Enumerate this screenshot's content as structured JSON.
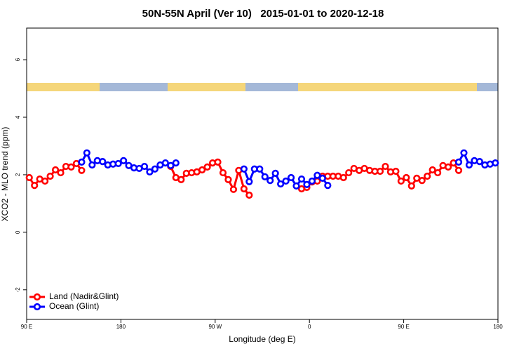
{
  "chart_data": {
    "type": "line",
    "title": "50N-55N April (Ver 10)   2015-01-01 to 2020-12-18",
    "xlabel": "Longitude (deg E)",
    "ylabel": "XCO2 - MLO trend (ppm)",
    "xlim": [
      90,
      540
    ],
    "ylim": [
      -3.03,
      7.1
    ],
    "xticks": [
      {
        "value": 90,
        "label": "90 E"
      },
      180,
      {
        "value": 270,
        "label": "90 W"
      },
      {
        "value": 360,
        "label": "0"
      },
      {
        "value": 450,
        "label": "90 E"
      },
      {
        "value": 540,
        "label": "180"
      }
    ],
    "yticks": [
      -2,
      0,
      2,
      4,
      6
    ],
    "legend": "bottom-left",
    "x": [
      92.5,
      97.5,
      102.5,
      107.5,
      112.5,
      117.5,
      122.5,
      127.5,
      132.5,
      137.5,
      142.5,
      147.5,
      152.5,
      157.5,
      162.5,
      167.5,
      172.5,
      177.5,
      182.5,
      187.5,
      192.5,
      197.5,
      202.5,
      207.5,
      212.5,
      217.5,
      222.5,
      227.5,
      232.5,
      237.5,
      242.5,
      247.5,
      252.5,
      257.5,
      262.5,
      267.5,
      272.5,
      277.5,
      282.5,
      287.5,
      292.5,
      297.5,
      302.5,
      307.5,
      312.5,
      317.5,
      322.5,
      327.5,
      332.5,
      337.5,
      342.5,
      347.5,
      352.5,
      357.5,
      362.5,
      367.5,
      372.5,
      377.5,
      382.5,
      387.5,
      392.5,
      397.5,
      402.5,
      407.5,
      412.5,
      417.5,
      422.5,
      427.5,
      432.5,
      437.5,
      442.5,
      447.5,
      452.5,
      457.5,
      462.5,
      467.5,
      472.5,
      477.5,
      482.5,
      487.5,
      492.5,
      497.5,
      502.5,
      507.5,
      512.5,
      517.5,
      522.5,
      527.5,
      532.5,
      537.5
    ],
    "series": [
      {
        "name": "Land (Nadir&Glint)",
        "color": "#ff0000",
        "values": [
          1.9,
          1.63,
          1.85,
          1.78,
          1.95,
          2.17,
          2.07,
          2.29,
          2.27,
          2.39,
          2.15,
          null,
          null,
          null,
          null,
          null,
          null,
          null,
          null,
          null,
          null,
          null,
          null,
          null,
          null,
          null,
          null,
          2.29,
          1.9,
          1.83,
          2.05,
          2.07,
          2.1,
          2.17,
          2.27,
          2.41,
          2.44,
          2.07,
          1.83,
          1.49,
          2.15,
          1.51,
          1.29,
          null,
          null,
          null,
          null,
          null,
          null,
          null,
          null,
          null,
          1.51,
          1.56,
          1.75,
          1.78,
          1.95,
          1.95,
          1.95,
          1.95,
          1.9,
          2.07,
          2.22,
          2.15,
          2.22,
          2.15,
          2.12,
          2.12,
          2.29,
          2.1,
          2.12,
          1.78,
          1.9,
          1.61,
          1.88,
          1.8,
          1.95,
          2.17,
          2.07,
          2.32,
          2.27,
          2.41,
          2.15,
          null,
          null,
          null,
          null,
          null,
          null,
          null
        ]
      },
      {
        "name": "Ocean (Glint)",
        "color": "#0000ff",
        "values": [
          null,
          null,
          null,
          null,
          null,
          null,
          null,
          null,
          null,
          null,
          2.44,
          2.76,
          2.34,
          2.49,
          2.46,
          2.34,
          2.37,
          2.39,
          2.49,
          2.32,
          2.24,
          2.22,
          2.29,
          2.1,
          2.2,
          2.34,
          2.41,
          2.32,
          2.41,
          null,
          null,
          null,
          null,
          null,
          null,
          null,
          null,
          null,
          null,
          null,
          null,
          2.2,
          1.76,
          2.2,
          2.2,
          1.93,
          1.8,
          2.05,
          1.68,
          1.78,
          1.9,
          1.61,
          1.85,
          1.66,
          1.78,
          1.98,
          1.88,
          1.63,
          null,
          null,
          null,
          null,
          null,
          null,
          null,
          null,
          null,
          null,
          null,
          null,
          null,
          null,
          null,
          null,
          null,
          null,
          null,
          null,
          null,
          null,
          null,
          null,
          2.44,
          2.76,
          2.34,
          2.49,
          2.46,
          2.34,
          2.37,
          2.41
        ]
      }
    ]
  }
}
